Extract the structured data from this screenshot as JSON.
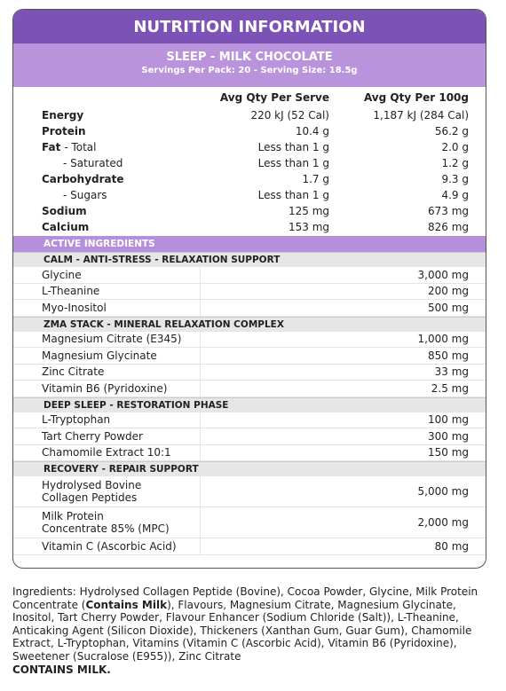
{
  "header": {
    "title": "NUTRITION INFORMATION",
    "product": "SLEEP - MILK CHOCOLATE",
    "servings": "Servings Per Pack: 20 - Serving Size: 18.5g"
  },
  "nutrition": {
    "columns": [
      "Avg Qty Per Serve",
      "Avg Qty Per 100g"
    ],
    "rows": [
      {
        "label": "Energy",
        "bold": true,
        "serve": "220 kJ (52 Cal)",
        "per100": "1,187 kJ (284 Cal)"
      },
      {
        "label": "Protein",
        "bold": true,
        "serve": "10.4 g",
        "per100": "56.2 g"
      },
      {
        "label": "Fat",
        "detail": "- Total",
        "bold": true,
        "serve": "Less than 1 g",
        "per100": "2.0 g"
      },
      {
        "label": "- Saturated",
        "indent": true,
        "serve": "Less than 1 g",
        "per100": "1.2 g"
      },
      {
        "label": "Carbohydrate",
        "bold": true,
        "serve": "1.7 g",
        "per100": "9.3 g"
      },
      {
        "label": "- Sugars",
        "indent": true,
        "serve": "Less than 1 g",
        "per100": "4.9 g"
      },
      {
        "label": "Sodium",
        "bold": true,
        "serve": "125 mg",
        "per100": "673 mg"
      },
      {
        "label": "Calcium",
        "bold": true,
        "serve": "153 mg",
        "per100": "826 mg"
      }
    ]
  },
  "active": {
    "title": "ACTIVE INGREDIENTS",
    "sections": [
      {
        "title": "CALM - ANTI-STRESS - RELAXATION SUPPORT",
        "items": [
          {
            "name": "Glycine",
            "amount": "3,000 mg"
          },
          {
            "name": "L-Theanine",
            "amount": "200 mg"
          },
          {
            "name": "Myo-Inositol",
            "amount": "500 mg"
          }
        ]
      },
      {
        "title": "ZMA STACK - MINERAL RELAXATION COMPLEX",
        "items": [
          {
            "name": "Magnesium Citrate (E345)",
            "amount": "1,000 mg"
          },
          {
            "name": "Magnesium Glycinate",
            "amount": "850 mg"
          },
          {
            "name": "Zinc Citrate",
            "amount": "33 mg"
          },
          {
            "name": "Vitamin B6 (Pyridoxine)",
            "amount": "2.5 mg"
          }
        ]
      },
      {
        "title": "DEEP SLEEP - RESTORATION PHASE",
        "items": [
          {
            "name": "L-Tryptophan",
            "amount": "100 mg"
          },
          {
            "name": "Tart Cherry Powder",
            "amount": "300 mg"
          },
          {
            "name": "Chamomile Extract 10:1",
            "amount": "150 mg"
          }
        ]
      },
      {
        "title": "RECOVERY - REPAIR SUPPORT",
        "items": [
          {
            "name": [
              "Hydrolysed Bovine",
              "Collagen Peptides"
            ],
            "amount": "5,000 mg"
          },
          {
            "name": [
              "Milk Protein",
              "Concentrate 85% (MPC)"
            ],
            "amount": "2,000 mg"
          },
          {
            "name": "Vitamin C (Ascorbic Acid)",
            "amount": "80 mg"
          }
        ]
      }
    ]
  },
  "ingredients": {
    "parts": [
      "Ingredients: Hydrolysed Collagen Peptide (Bovine), Cocoa Powder, Glycine, Milk Protein Concentrate (",
      "Contains Milk",
      "), Flavours, Magnesium Citrate, Magnesium Glycinate, Inositol, Tart Cherry Powder, Flavour Enhancer (Sodium Chloride (Salt)), L-Theanine, Anticaking Agent (Silicon Dioxide), Thickeners (Xanthan Gum, Guar Gum), Chamomile Extract, L-Tryptophan, Vitamins (Vitamin C (Ascorbic Acid), Vitamin B6 (Pyridoxine), Sweetener (Sucralose (E955)), Zinc Citrate"
    ],
    "bold_part": 1,
    "warning": "CONTAINS MILK."
  }
}
